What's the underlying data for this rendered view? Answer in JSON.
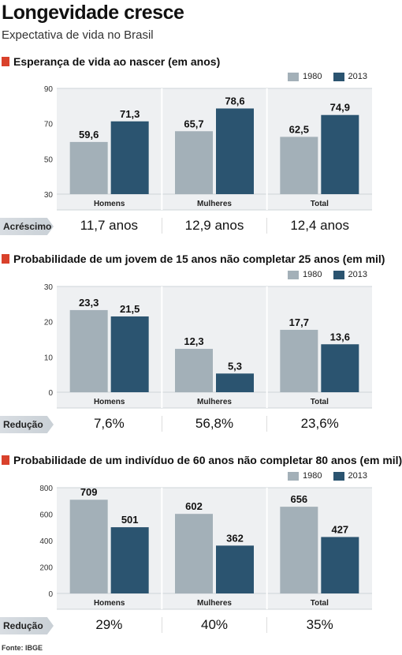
{
  "header": {
    "title": "Longevidade cresce",
    "subtitle": "Expectativa de vida no Brasil"
  },
  "legend": {
    "a": "1980",
    "b": "2013"
  },
  "colors": {
    "a": "#a3b0b8",
    "b": "#2b5470",
    "accent": "#d9412b"
  },
  "panels": [
    {
      "title": "Esperança de vida ao nascer (em anos)",
      "row_label": "Acréscimo",
      "row_values": [
        "11,7 anos",
        "12,9 anos",
        "12,4 anos"
      ]
    },
    {
      "title": "Probabilidade de um jovem de 15 anos não completar 25 anos (em mil)",
      "row_label": "Redução",
      "row_values": [
        "7,6%",
        "56,8%",
        "23,6%"
      ]
    },
    {
      "title": "Probabilidade de um indivíduo de 60 anos não completar 80 anos (em mil)",
      "row_label": "Redução",
      "row_values": [
        "29%",
        "40%",
        "35%"
      ]
    }
  ],
  "chart_data": [
    {
      "type": "bar",
      "title": "Esperança de vida ao nascer (em anos)",
      "categories": [
        "Homens",
        "Mulheres",
        "Total"
      ],
      "series": [
        {
          "name": "1980",
          "values": [
            59.6,
            65.7,
            62.5
          ],
          "labels": [
            "59,6",
            "65,7",
            "62,5"
          ]
        },
        {
          "name": "2013",
          "values": [
            71.3,
            78.6,
            74.9
          ],
          "labels": [
            "71,3",
            "78,6",
            "74,9"
          ]
        }
      ],
      "ylim": [
        30,
        90
      ],
      "yticks": [
        30,
        50,
        70,
        90
      ],
      "legend": "top-right"
    },
    {
      "type": "bar",
      "title": "Probabilidade de um jovem de 15 anos não completar 25 anos (em mil)",
      "categories": [
        "Homens",
        "Mulheres",
        "Total"
      ],
      "series": [
        {
          "name": "1980",
          "values": [
            23.3,
            12.3,
            17.7
          ],
          "labels": [
            "23,3",
            "12,3",
            "17,7"
          ]
        },
        {
          "name": "2013",
          "values": [
            21.5,
            5.3,
            13.6
          ],
          "labels": [
            "21,5",
            "5,3",
            "13,6"
          ]
        }
      ],
      "ylim": [
        0,
        30
      ],
      "yticks": [
        0,
        10,
        20,
        30
      ],
      "legend": "top-right"
    },
    {
      "type": "bar",
      "title": "Probabilidade de um indivíduo de 60 anos não completar 80 anos (em mil)",
      "categories": [
        "Homens",
        "Mulheres",
        "Total"
      ],
      "series": [
        {
          "name": "1980",
          "values": [
            709,
            602,
            656
          ],
          "labels": [
            "709",
            "602",
            "656"
          ]
        },
        {
          "name": "2013",
          "values": [
            501,
            362,
            427
          ],
          "labels": [
            "501",
            "362",
            "427"
          ]
        }
      ],
      "ylim": [
        0,
        800
      ],
      "yticks": [
        0,
        200,
        400,
        600,
        800
      ],
      "ytick_labels": [
        "0",
        "200",
        "400",
        "600",
        "800"
      ],
      "legend": "top-right"
    }
  ],
  "source": "Fonte: IBGE"
}
